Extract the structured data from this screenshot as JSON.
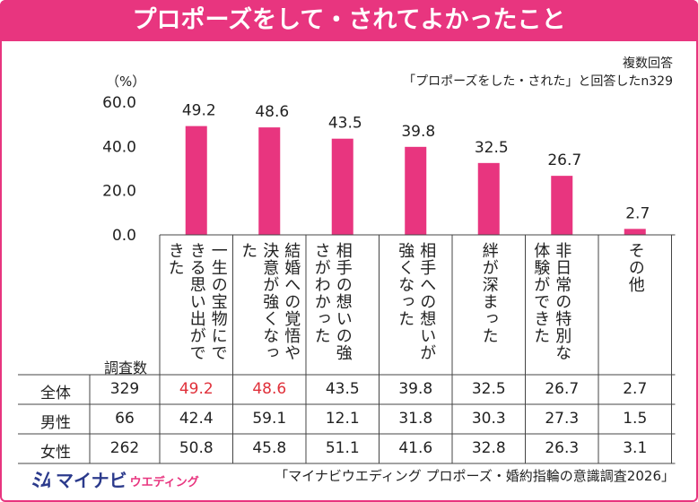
{
  "title": "プロポーズをして・されてよかったこと",
  "note_line1": "複数回答",
  "note_line2": "「プロポーズをした・された」と回答したn329",
  "unit": "（%）",
  "sample_header": "調査数",
  "source": "「マイナビウエディング プロポーズ・婚約指輪の意識調査2026」",
  "logo": {
    "mark": "ﾐﾑ",
    "main": "マイナビ",
    "sub": "ウエディング"
  },
  "colors": {
    "accent": "#e8357f",
    "highlight": "#e0303a"
  },
  "chart_data": {
    "type": "bar",
    "categories": [
      "一生の宝物にできる思い出ができた",
      "結婚への覚悟や決意が強くなった",
      "相手の想いの強さがわかった",
      "相手への想いが強くなった",
      "絆が深まった",
      "非日常の特別な体験ができた",
      "その他"
    ],
    "values": [
      49.2,
      48.6,
      43.5,
      39.8,
      32.5,
      26.7,
      2.7
    ],
    "value_labels": [
      "49.2",
      "48.6",
      "43.5",
      "39.8",
      "32.5",
      "26.7",
      "2.7"
    ],
    "yticks": [
      "0.0",
      "20.0",
      "40.0",
      "60.0"
    ],
    "ylim": [
      0,
      60
    ],
    "ylabel": "（%）"
  },
  "table": {
    "rows": [
      {
        "label": "全体",
        "n": "329",
        "values": [
          "49.2",
          "48.6",
          "43.5",
          "39.8",
          "32.5",
          "26.7",
          "2.7"
        ],
        "highlight": [
          true,
          true,
          false,
          false,
          false,
          false,
          false
        ]
      },
      {
        "label": "男性",
        "n": "66",
        "values": [
          "42.4",
          "59.1",
          "12.1",
          "31.8",
          "30.3",
          "27.3",
          "1.5"
        ],
        "highlight": [
          false,
          false,
          false,
          false,
          false,
          false,
          false
        ]
      },
      {
        "label": "女性",
        "n": "262",
        "values": [
          "50.8",
          "45.8",
          "51.1",
          "41.6",
          "32.8",
          "26.3",
          "3.1"
        ],
        "highlight": [
          false,
          false,
          false,
          false,
          false,
          false,
          false
        ]
      }
    ]
  }
}
